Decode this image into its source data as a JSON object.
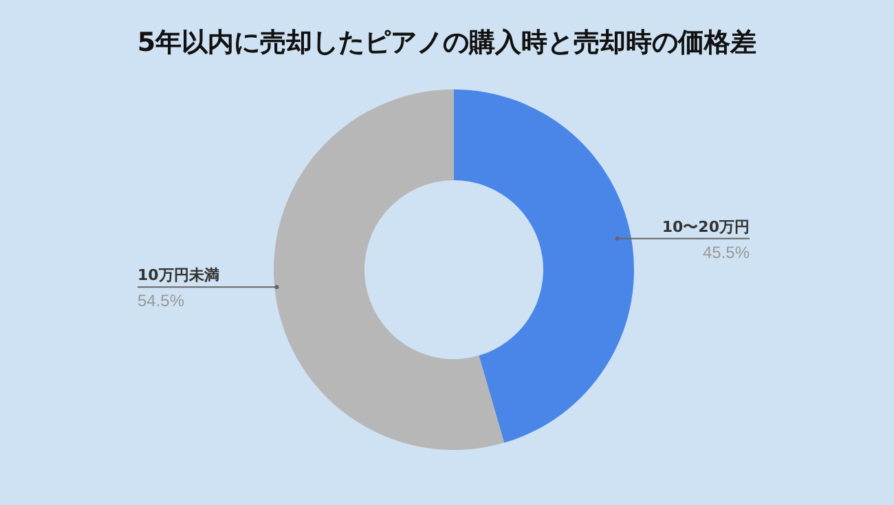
{
  "chart_data": {
    "type": "donut",
    "title": "5年以内に売却したピアノの購入時と売却時の価格差",
    "categories": [
      "10〜20万円",
      "10万円未満"
    ],
    "values": [
      45.5,
      54.5
    ],
    "colors": [
      "#4a86e8",
      "#b7b7b7"
    ],
    "value_labels": [
      "45.5%",
      "54.5%"
    ],
    "legend": false
  }
}
